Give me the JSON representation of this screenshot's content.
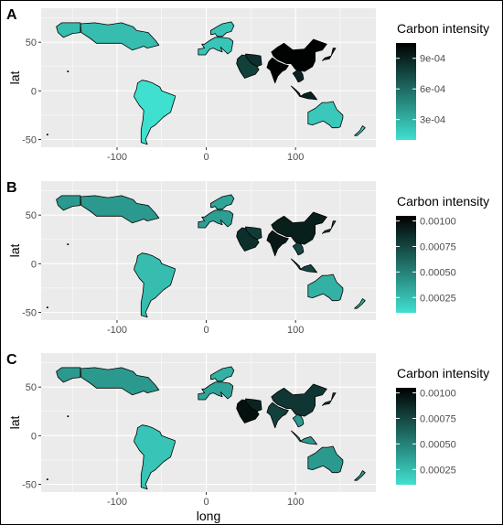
{
  "chart_data": [
    {
      "type": "map",
      "panel_label": "A",
      "xlabel": "",
      "ylabel": "lat",
      "x_ticks": [
        -100,
        0,
        100
      ],
      "y_ticks": [
        -50,
        0,
        50
      ],
      "xlim": [
        -185,
        190
      ],
      "ylim": [
        -58,
        85
      ],
      "legend": {
        "title": "Carbon intensity",
        "min": 0.0001,
        "max": 0.00105,
        "ticks": [
          0.0003,
          0.0006,
          0.0009
        ],
        "tick_labels": [
          "3e-04",
          "6e-04",
          "9e-04"
        ]
      },
      "regions": [
        {
          "name": "Canada",
          "value": 0.00025
        },
        {
          "name": "Alaska",
          "value": 0.00025
        },
        {
          "name": "Europe",
          "value": 0.00022
        },
        {
          "name": "Scandinavia",
          "value": 0.00022
        },
        {
          "name": "Middle East",
          "value": 0.00078
        },
        {
          "name": "Iran",
          "value": 0.00085
        },
        {
          "name": "China",
          "value": 0.00104
        },
        {
          "name": "India",
          "value": 0.00104
        },
        {
          "name": "Southeast Asia",
          "value": 0.0009
        },
        {
          "name": "Japan",
          "value": 0.00095
        },
        {
          "name": "South America",
          "value": 0.0001
        },
        {
          "name": "Australia",
          "value": 0.0002
        },
        {
          "name": "New Zealand",
          "value": 0.0002
        }
      ]
    },
    {
      "type": "map",
      "panel_label": "B",
      "xlabel": "",
      "ylabel": "lat",
      "x_ticks": [
        -100,
        0,
        100
      ],
      "y_ticks": [
        -50,
        0,
        50
      ],
      "xlim": [
        -185,
        190
      ],
      "ylim": [
        -58,
        85
      ],
      "legend": {
        "title": "Carbon intensity",
        "min": 0.0001,
        "max": 0.00105,
        "ticks": [
          0.00025,
          0.0005,
          0.00075,
          0.001
        ],
        "tick_labels": [
          "0.00025",
          "0.00050",
          "0.00075",
          "0.00100"
        ]
      },
      "regions": [
        {
          "name": "Canada",
          "value": 0.0004
        },
        {
          "name": "Alaska",
          "value": 0.0004
        },
        {
          "name": "Europe",
          "value": 0.00038
        },
        {
          "name": "Scandinavia",
          "value": 0.00035
        },
        {
          "name": "Middle East",
          "value": 0.00085
        },
        {
          "name": "Iran",
          "value": 0.0008
        },
        {
          "name": "China",
          "value": 0.00092
        },
        {
          "name": "India",
          "value": 0.00095
        },
        {
          "name": "Southeast Asia",
          "value": 0.00075
        },
        {
          "name": "Japan",
          "value": 0.00075
        },
        {
          "name": "South America",
          "value": 0.00025
        },
        {
          "name": "Australia",
          "value": 0.0003
        },
        {
          "name": "New Zealand",
          "value": 0.0003
        }
      ]
    },
    {
      "type": "map",
      "panel_label": "C",
      "xlabel": "long",
      "ylabel": "lat",
      "x_ticks": [
        -100,
        0,
        100
      ],
      "y_ticks": [
        -50,
        0,
        50
      ],
      "xlim": [
        -185,
        190
      ],
      "ylim": [
        -58,
        85
      ],
      "legend": {
        "title": "Carbon intensity",
        "min": 0.0001,
        "max": 0.00105,
        "ticks": [
          0.00025,
          0.0005,
          0.00075,
          0.001
        ],
        "tick_labels": [
          "0.00025",
          "0.00050",
          "0.00075",
          "0.00100"
        ]
      },
      "regions": [
        {
          "name": "Canada",
          "value": 0.0004
        },
        {
          "name": "Alaska",
          "value": 0.0004
        },
        {
          "name": "Europe",
          "value": 0.00035
        },
        {
          "name": "Scandinavia",
          "value": 0.0003
        },
        {
          "name": "Middle East",
          "value": 0.00098
        },
        {
          "name": "Iran",
          "value": 0.0009
        },
        {
          "name": "China",
          "value": 0.00082
        },
        {
          "name": "India",
          "value": 0.00078
        },
        {
          "name": "Southeast Asia",
          "value": 0.0004
        },
        {
          "name": "Japan",
          "value": 0.0008
        },
        {
          "name": "South America",
          "value": 0.00022
        },
        {
          "name": "Australia",
          "value": 0.0004
        },
        {
          "name": "New Zealand",
          "value": 0.0004
        }
      ]
    }
  ],
  "colors": {
    "panel_bg": "#ebebeb",
    "grid": "#ffffff",
    "scale_low": "#40e0d0",
    "scale_high": "#000000"
  }
}
